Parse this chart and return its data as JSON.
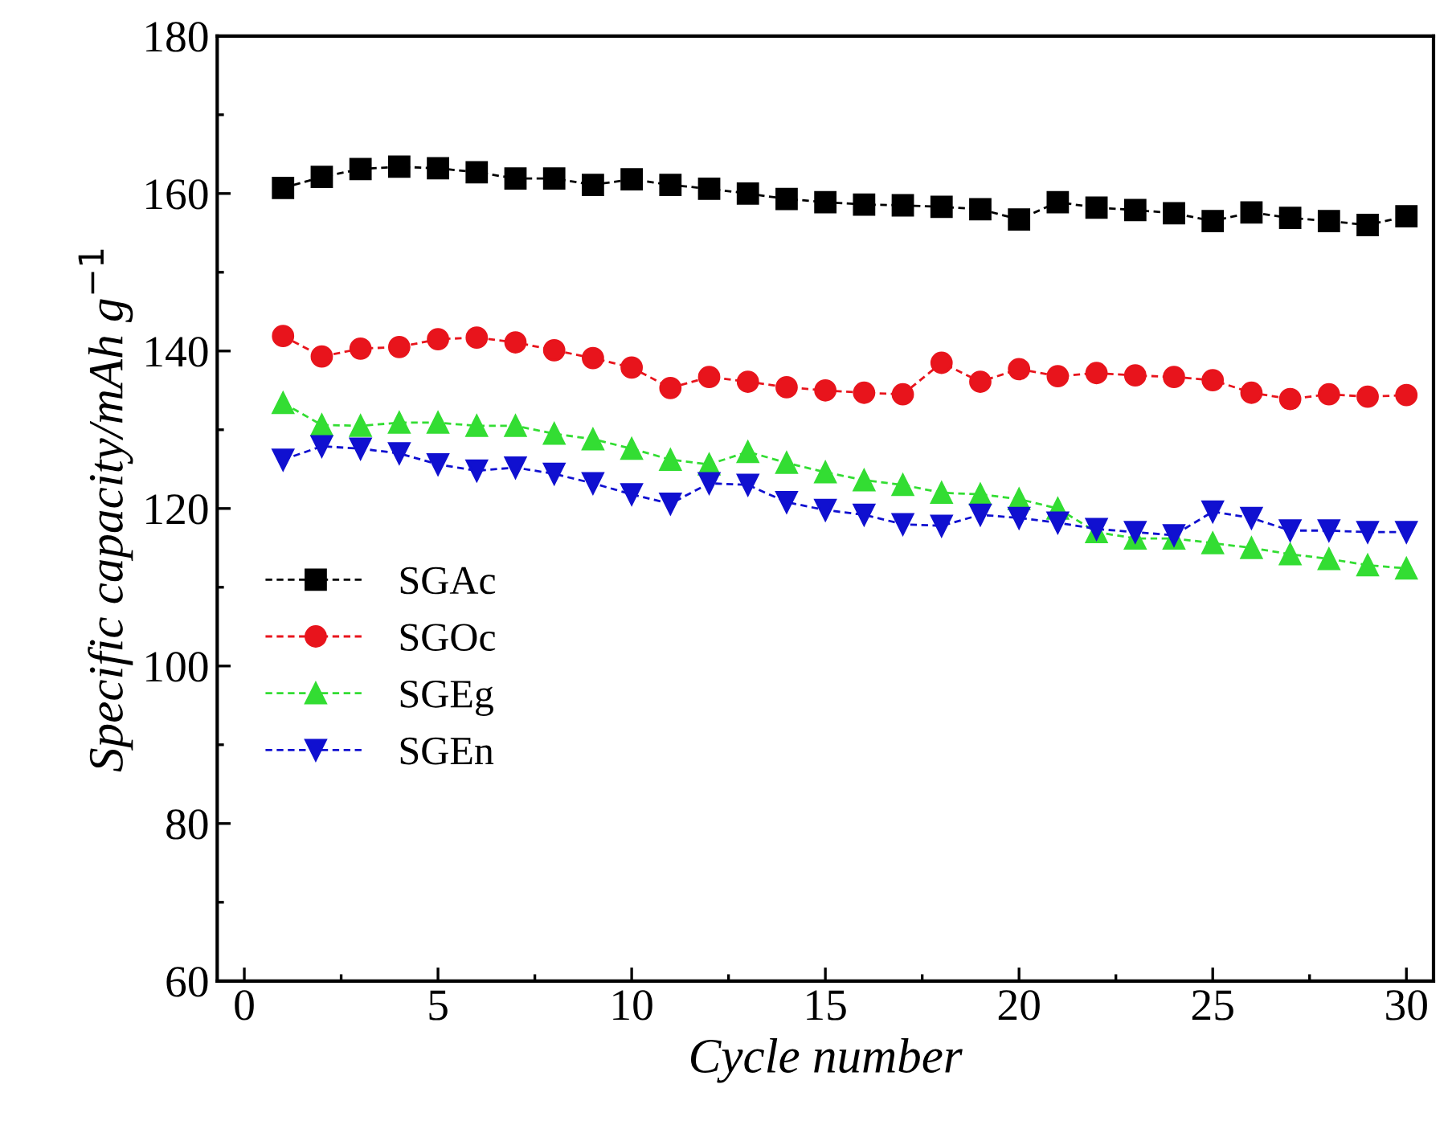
{
  "chart_data": {
    "type": "line",
    "xlabel": "Cycle number",
    "ylabel": "Specific capacity/mAh g$^{−1}$",
    "x": [
      1,
      2,
      3,
      4,
      5,
      6,
      7,
      8,
      9,
      10,
      11,
      12,
      13,
      14,
      15,
      16,
      17,
      18,
      19,
      20,
      21,
      22,
      23,
      24,
      25,
      26,
      27,
      28,
      29,
      30
    ],
    "xlim": [
      -0.7,
      30.7
    ],
    "xticks": [
      0,
      5,
      10,
      15,
      20,
      25,
      30
    ],
    "ylim": [
      60,
      180
    ],
    "yticks": [
      60,
      80,
      100,
      120,
      140,
      160,
      180
    ],
    "grid": false,
    "legend": "left",
    "line_style": "dashed",
    "series": [
      {
        "name": "SGAc",
        "color": "#000000",
        "marker": "square",
        "values": [
          160.7,
          162.1,
          163.1,
          163.4,
          163.2,
          162.7,
          161.9,
          161.9,
          161.1,
          161.8,
          161.1,
          160.6,
          160.0,
          159.3,
          158.9,
          158.6,
          158.5,
          158.3,
          158.0,
          156.7,
          158.9,
          158.2,
          157.9,
          157.5,
          156.5,
          157.6,
          156.9,
          156.5,
          156.0,
          157.1
        ]
      },
      {
        "name": "SGOc",
        "color": "#e8141c",
        "marker": "circle",
        "values": [
          141.9,
          139.3,
          140.3,
          140.5,
          141.5,
          141.7,
          141.1,
          140.1,
          139.1,
          137.9,
          135.3,
          136.7,
          136.1,
          135.4,
          135.0,
          134.7,
          134.5,
          138.5,
          136.1,
          137.7,
          136.8,
          137.2,
          136.9,
          136.7,
          136.3,
          134.7,
          133.9,
          134.5,
          134.2,
          134.4
        ]
      },
      {
        "name": "SGEg",
        "color": "#33dd33",
        "marker": "triangle",
        "values": [
          133.4,
          130.6,
          130.5,
          130.9,
          130.9,
          130.5,
          130.5,
          129.5,
          128.8,
          127.6,
          126.2,
          125.6,
          127.2,
          125.8,
          124.6,
          123.6,
          123.0,
          122.0,
          121.8,
          121.2,
          120.0,
          117.0,
          116.2,
          116.2,
          115.6,
          115.0,
          114.2,
          113.6,
          112.8,
          112.4
        ]
      },
      {
        "name": "SGEn",
        "color": "#1010d0",
        "marker": "triangle_down",
        "values": [
          126.2,
          127.9,
          127.6,
          127.0,
          125.6,
          124.8,
          125.2,
          124.4,
          123.2,
          121.8,
          120.6,
          123.2,
          123.0,
          120.8,
          119.8,
          119.2,
          118.0,
          117.8,
          119.2,
          118.8,
          118.2,
          117.4,
          117.0,
          116.6,
          119.6,
          118.8,
          117.2,
          117.2,
          117.0,
          117.0
        ]
      }
    ]
  }
}
